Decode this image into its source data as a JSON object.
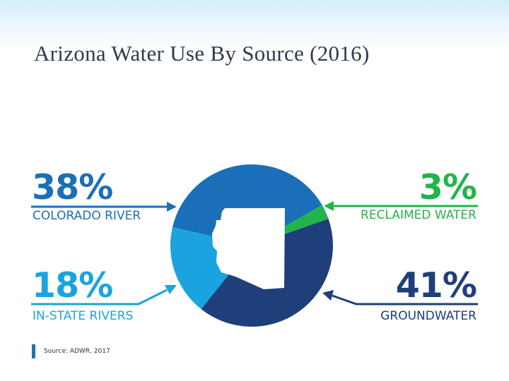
{
  "slide": {
    "title": "Arizona Water Use By Source (2016)"
  },
  "chart_data": {
    "type": "pie",
    "title": "Arizona Water Use By Source (2016)",
    "slices": [
      {
        "label": "COLORADO RIVER",
        "value": 38,
        "display": "38%",
        "color": "#1b6fb8"
      },
      {
        "label": "RECLAIMED WATER",
        "value": 3,
        "display": "3%",
        "color": "#21b44b"
      },
      {
        "label": "GROUNDWATER",
        "value": 41,
        "display": "41%",
        "color": "#1e3f7a"
      },
      {
        "label": "IN-STATE RIVERS",
        "value": 18,
        "display": "18%",
        "color": "#1aa3df"
      }
    ],
    "center_icon": "arizona-state-silhouette",
    "source": "Source: ADWR, 2017"
  }
}
